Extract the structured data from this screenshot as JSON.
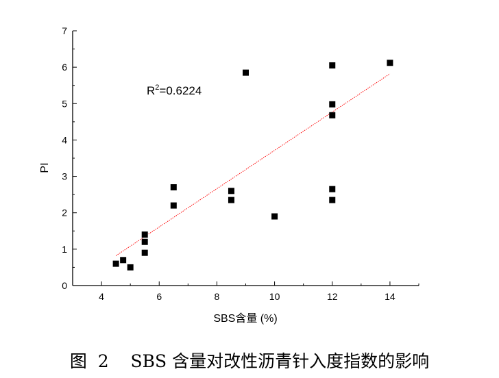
{
  "chart_data": {
    "type": "scatter",
    "xlabel": "SBS含量 (%)",
    "ylabel": "PI",
    "xlim": [
      3,
      15
    ],
    "ylim": [
      0,
      7
    ],
    "xticks": [
      "4",
      "6",
      "8",
      "10",
      "12",
      "14"
    ],
    "yticks": [
      "0",
      "1",
      "2",
      "3",
      "4",
      "5",
      "6",
      "7"
    ],
    "annotation": "R²=0.6224",
    "grid": false,
    "series": [
      {
        "marker": "square",
        "color": "#000000",
        "points": [
          [
            4.5,
            0.6
          ],
          [
            4.75,
            0.7
          ],
          [
            5.0,
            0.5
          ],
          [
            5.5,
            1.4
          ],
          [
            5.5,
            1.2
          ],
          [
            5.5,
            0.9
          ],
          [
            6.5,
            2.7
          ],
          [
            6.5,
            2.2
          ],
          [
            8.5,
            2.6
          ],
          [
            8.5,
            2.35
          ],
          [
            9.0,
            5.85
          ],
          [
            10.0,
            1.9
          ],
          [
            12.0,
            6.05
          ],
          [
            12.0,
            4.98
          ],
          [
            12.0,
            4.68
          ],
          [
            12.0,
            2.65
          ],
          [
            12.0,
            2.35
          ],
          [
            14.0,
            6.12
          ]
        ]
      }
    ],
    "trendline": {
      "color": "#ff0000",
      "style": "dotted",
      "x": [
        4.5,
        14.0
      ],
      "y": [
        0.82,
        5.82
      ]
    }
  },
  "caption": "图  2    SBS 含量对改性沥青针入度指数的影响"
}
